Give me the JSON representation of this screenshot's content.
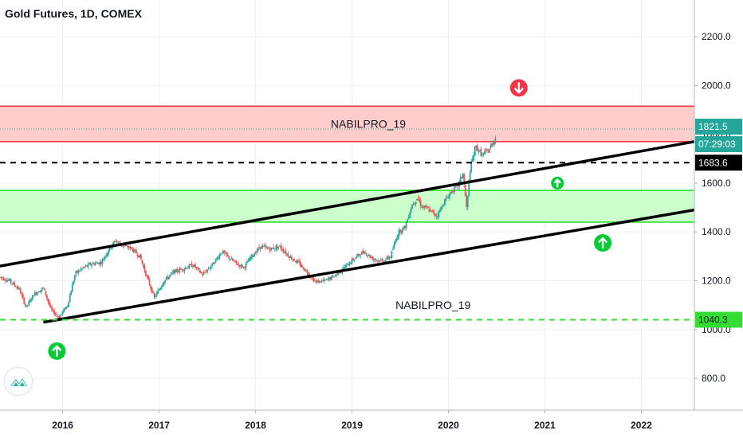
{
  "header": {
    "title": "Gold Futures, 1D, COMEX"
  },
  "colors": {
    "resistance_fill": "#ffcccc",
    "resistance_line": "#f23645",
    "support_fill": "#ccffcc",
    "support_line": "#33dd33",
    "channel": "#000000",
    "candle_up": "#26a69a",
    "candle_down": "#ef5350",
    "price_badge": "#26a69a",
    "dashed_level_badge": "#000000",
    "low_level_badge": "#33dd33",
    "arrow_up": "#00cc33",
    "arrow_down": "#f23645"
  },
  "chart_data": {
    "type": "candlestick",
    "symbol": "Gold Futures",
    "interval": "1D",
    "exchange": "COMEX",
    "x_ticks": [
      "2016",
      "2017",
      "2018",
      "2019",
      "2020",
      "2021",
      "2022"
    ],
    "y_ticks": [
      "800.0",
      "1000.0",
      "1200.0",
      "1400.0",
      "1600.0",
      "1800.0",
      "2000.0",
      "2200.0"
    ],
    "ylim": [
      670,
      2350
    ],
    "xlim": [
      2015.35,
      2022.55
    ],
    "price_path": [
      [
        2015.35,
        1215
      ],
      [
        2015.45,
        1200
      ],
      [
        2015.55,
        1165
      ],
      [
        2015.62,
        1090
      ],
      [
        2015.7,
        1145
      ],
      [
        2015.8,
        1170
      ],
      [
        2015.88,
        1080
      ],
      [
        2015.96,
        1050
      ],
      [
        2016.05,
        1100
      ],
      [
        2016.13,
        1230
      ],
      [
        2016.2,
        1250
      ],
      [
        2016.3,
        1270
      ],
      [
        2016.4,
        1275
      ],
      [
        2016.48,
        1330
      ],
      [
        2016.55,
        1365
      ],
      [
        2016.62,
        1345
      ],
      [
        2016.7,
        1335
      ],
      [
        2016.8,
        1300
      ],
      [
        2016.86,
        1230
      ],
      [
        2016.95,
        1130
      ],
      [
        2017.05,
        1200
      ],
      [
        2017.15,
        1235
      ],
      [
        2017.25,
        1250
      ],
      [
        2017.35,
        1265
      ],
      [
        2017.45,
        1225
      ],
      [
        2017.55,
        1265
      ],
      [
        2017.65,
        1320
      ],
      [
        2017.72,
        1295
      ],
      [
        2017.8,
        1270
      ],
      [
        2017.88,
        1255
      ],
      [
        2017.96,
        1300
      ],
      [
        2018.05,
        1340
      ],
      [
        2018.15,
        1330
      ],
      [
        2018.25,
        1340
      ],
      [
        2018.35,
        1300
      ],
      [
        2018.45,
        1270
      ],
      [
        2018.55,
        1230
      ],
      [
        2018.62,
        1195
      ],
      [
        2018.72,
        1200
      ],
      [
        2018.82,
        1220
      ],
      [
        2018.92,
        1255
      ],
      [
        2019.02,
        1290
      ],
      [
        2019.12,
        1320
      ],
      [
        2019.22,
        1290
      ],
      [
        2019.32,
        1280
      ],
      [
        2019.4,
        1300
      ],
      [
        2019.48,
        1400
      ],
      [
        2019.55,
        1420
      ],
      [
        2019.62,
        1510
      ],
      [
        2019.68,
        1540
      ],
      [
        2019.72,
        1505
      ],
      [
        2019.78,
        1495
      ],
      [
        2019.88,
        1465
      ],
      [
        2019.95,
        1520
      ],
      [
        2020.02,
        1560
      ],
      [
        2020.1,
        1590
      ],
      [
        2020.15,
        1640
      ],
      [
        2020.19,
        1490
      ],
      [
        2020.22,
        1645
      ],
      [
        2020.28,
        1750
      ],
      [
        2020.35,
        1715
      ],
      [
        2020.42,
        1735
      ],
      [
        2020.48,
        1780
      ],
      [
        2020.5,
        1810
      ]
    ],
    "current_price": {
      "label": "1821.5",
      "value": 1821.5,
      "countdown": "07:29:03"
    },
    "resistance_zone": {
      "low": 1770,
      "high": 1915,
      "label": "NABILPRO_19"
    },
    "support_zone": {
      "low": 1440,
      "high": 1570
    },
    "dashed_levels": [
      {
        "value": 1683.6,
        "label": "1683.6",
        "style": "black-dashed"
      },
      {
        "value": 1040.3,
        "label": "1040.3",
        "style": "green-dashed"
      }
    ],
    "channel": {
      "upper": [
        [
          2015.35,
          1260
        ],
        [
          2022.55,
          1770
        ]
      ],
      "lower": [
        [
          2015.8,
          1030
        ],
        [
          2022.55,
          1490
        ]
      ]
    },
    "annotations": [
      {
        "text": "NABILPRO_19",
        "x": 2019.84,
        "y": 1100
      }
    ],
    "signals": [
      {
        "type": "arrow-down",
        "x": 2020.73,
        "y": 1990,
        "size": "large"
      },
      {
        "type": "arrow-up",
        "x": 2021.13,
        "y": 1600,
        "size": "small"
      },
      {
        "type": "arrow-up",
        "x": 2021.6,
        "y": 1355,
        "size": "large"
      },
      {
        "type": "arrow-up",
        "x": 2015.94,
        "y": 912,
        "size": "large"
      }
    ]
  }
}
